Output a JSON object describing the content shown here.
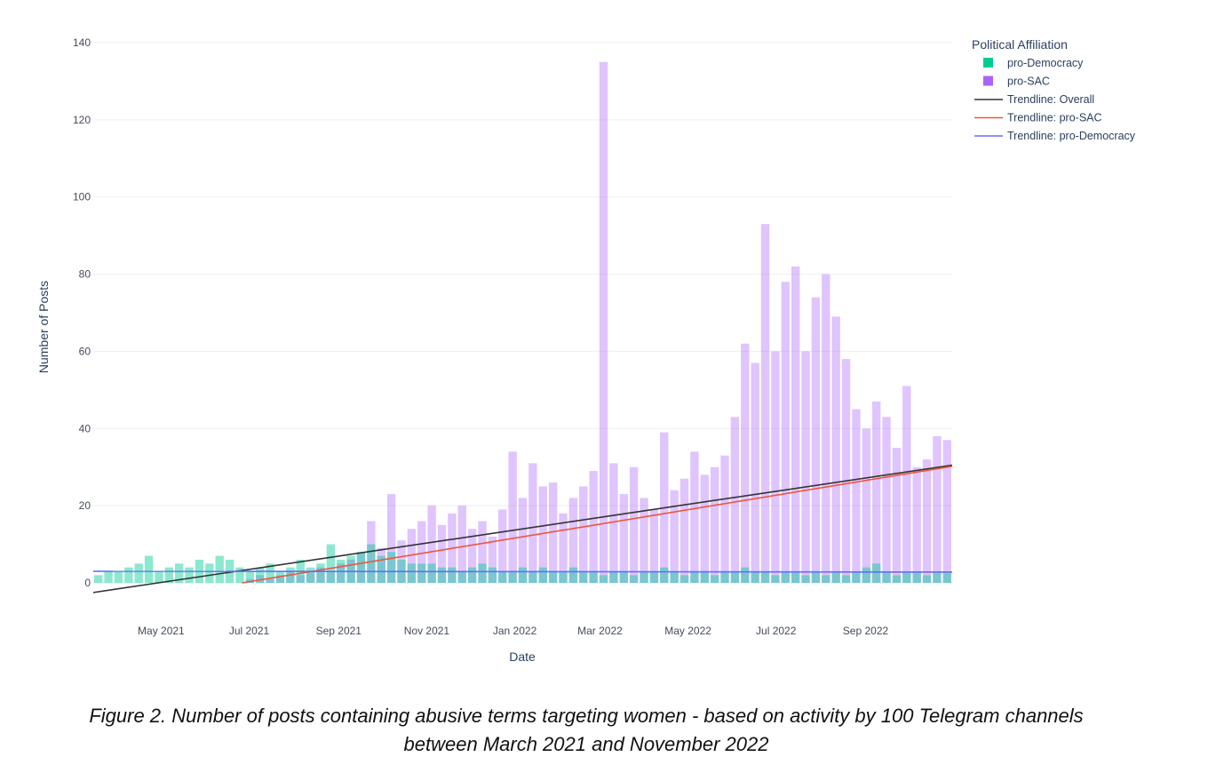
{
  "chart_data": {
    "type": "bar",
    "xlabel": "Date",
    "ylabel": "Number of Posts",
    "x_start": "2021-03-15",
    "x_end": "2022-10-31",
    "x_bin": "week",
    "x_ticks": [
      {
        "date": "2021-05-01",
        "label": "May 2021"
      },
      {
        "date": "2021-07-01",
        "label": "Jul 2021"
      },
      {
        "date": "2021-09-01",
        "label": "Sep 2021"
      },
      {
        "date": "2021-11-01",
        "label": "Nov 2021"
      },
      {
        "date": "2022-01-01",
        "label": "Jan 2022"
      },
      {
        "date": "2022-03-01",
        "label": "Mar 2022"
      },
      {
        "date": "2022-05-01",
        "label": "May 2022"
      },
      {
        "date": "2022-07-01",
        "label": "Jul 2022"
      },
      {
        "date": "2022-09-01",
        "label": "Sep 2022"
      }
    ],
    "ylim": [
      -4,
      142
    ],
    "y_ticks": [
      0,
      20,
      40,
      60,
      80,
      100,
      120,
      140
    ],
    "grid": true,
    "legend": {
      "title": "Political Affiliation",
      "placement": "top-right"
    },
    "series": [
      {
        "name": "pro-Democracy",
        "kind": "bar",
        "color": "#00cc96",
        "values": [
          2,
          3,
          3,
          4,
          5,
          7,
          3,
          4,
          5,
          4,
          6,
          5,
          7,
          6,
          4,
          3,
          4,
          5,
          3,
          4,
          6,
          4,
          5,
          10,
          6,
          7,
          8,
          10,
          7,
          8,
          6,
          5,
          5,
          5,
          4,
          4,
          3,
          4,
          5,
          4,
          3,
          3,
          4,
          3,
          4,
          3,
          3,
          4,
          3,
          3,
          2,
          3,
          3,
          2,
          3,
          3,
          4,
          3,
          2,
          3,
          3,
          2,
          3,
          3,
          4,
          3,
          3,
          2,
          3,
          3,
          2,
          3,
          2,
          3,
          2,
          3,
          4,
          5,
          3,
          2,
          3,
          3,
          2,
          3,
          3
        ]
      },
      {
        "name": "pro-SAC",
        "kind": "bar",
        "color": "#ab63fa",
        "values": [
          0,
          0,
          0,
          0,
          0,
          0,
          0,
          0,
          0,
          0,
          0,
          0,
          0,
          0,
          0,
          1,
          2,
          1,
          2,
          3,
          2,
          3,
          4,
          3,
          5,
          6,
          8,
          16,
          9,
          23,
          11,
          14,
          16,
          20,
          15,
          18,
          20,
          14,
          16,
          12,
          19,
          34,
          22,
          31,
          25,
          26,
          18,
          22,
          25,
          29,
          135,
          31,
          23,
          30,
          22,
          19,
          39,
          24,
          27,
          34,
          28,
          30,
          33,
          43,
          62,
          57,
          93,
          60,
          78,
          82,
          60,
          74,
          80,
          69,
          58,
          45,
          40,
          47,
          43,
          35,
          51,
          30,
          32,
          38,
          37
        ]
      },
      {
        "name": "Trendline: Overall",
        "kind": "line",
        "color": "#333333",
        "points": [
          {
            "date": "2021-03-15",
            "y": -2.5
          },
          {
            "date": "2022-10-31",
            "y": 30.5
          }
        ]
      },
      {
        "name": "Trendline: pro-SAC",
        "kind": "line",
        "color": "#ef553b",
        "points": [
          {
            "date": "2021-06-26",
            "y": 0
          },
          {
            "date": "2022-10-31",
            "y": 30.2
          }
        ]
      },
      {
        "name": "Trendline: pro-Democracy",
        "kind": "line",
        "color": "#636efa",
        "points": [
          {
            "date": "2021-03-15",
            "y": 3
          },
          {
            "date": "2022-10-31",
            "y": 2.8
          }
        ]
      }
    ]
  },
  "caption": {
    "line1": "Figure 2. Number of posts containing abusive terms targeting women - based on activity by 100 Telegram channels",
    "line2": "between March 2021 and November 2022"
  }
}
